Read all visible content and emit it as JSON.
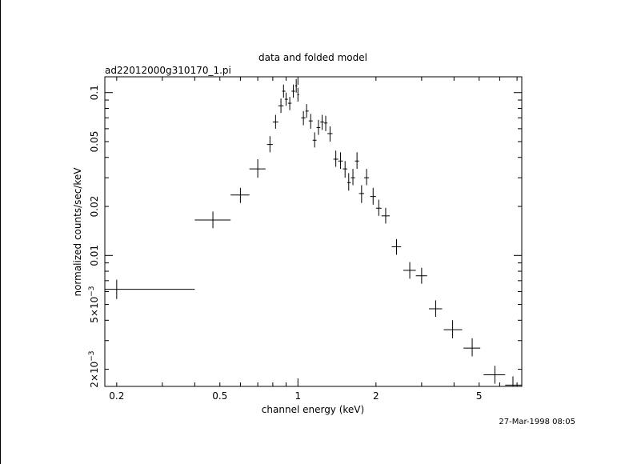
{
  "chart_data": {
    "type": "scatter",
    "title": "data and folded model",
    "subtitle": "ad22012000g310170_1.pi",
    "xlabel": "channel energy (keV)",
    "ylabel": "normalized counts/sec/keV",
    "timestamp": "27-Mar-1998 08:05",
    "x_scale": "log",
    "y_scale": "log",
    "xlim": [
      0.18,
      7.3
    ],
    "ylim": [
      0.00157,
      0.125
    ],
    "x_ticks": [
      {
        "value": 0.2,
        "label": "0.2"
      },
      {
        "value": 0.5,
        "label": "0.5"
      },
      {
        "value": 1,
        "label": "1"
      },
      {
        "value": 2,
        "label": "2"
      },
      {
        "value": 5,
        "label": "5"
      }
    ],
    "y_ticks": [
      {
        "value": 0.1,
        "label": "0.1"
      },
      {
        "value": 0.05,
        "label": "0.05"
      },
      {
        "value": 0.02,
        "label": "0.02"
      },
      {
        "value": 0.01,
        "label": "0.01"
      },
      {
        "value": 0.005,
        "label": "5×10",
        "exp": "−3"
      },
      {
        "value": 0.002,
        "label": "2×10",
        "exp": "−3"
      }
    ],
    "points": [
      {
        "x": 0.2,
        "xlo": 0.18,
        "xhi": 0.4,
        "y": 0.0062,
        "ylo": 0.0054,
        "yhi": 0.0071
      },
      {
        "x": 0.47,
        "xlo": 0.4,
        "xhi": 0.55,
        "y": 0.0165,
        "ylo": 0.0147,
        "yhi": 0.0186
      },
      {
        "x": 0.6,
        "xlo": 0.55,
        "xhi": 0.65,
        "y": 0.0235,
        "ylo": 0.021,
        "yhi": 0.026
      },
      {
        "x": 0.7,
        "xlo": 0.65,
        "xhi": 0.75,
        "y": 0.034,
        "ylo": 0.03,
        "yhi": 0.039
      },
      {
        "x": 0.78,
        "xlo": 0.76,
        "xhi": 0.8,
        "y": 0.048,
        "ylo": 0.043,
        "yhi": 0.054
      },
      {
        "x": 0.82,
        "xlo": 0.8,
        "xhi": 0.84,
        "y": 0.066,
        "ylo": 0.06,
        "yhi": 0.073
      },
      {
        "x": 0.86,
        "xlo": 0.84,
        "xhi": 0.88,
        "y": 0.083,
        "ylo": 0.075,
        "yhi": 0.092
      },
      {
        "x": 0.88,
        "xlo": 0.87,
        "xhi": 0.895,
        "y": 0.102,
        "ylo": 0.093,
        "yhi": 0.112
      },
      {
        "x": 0.9,
        "xlo": 0.89,
        "xhi": 0.915,
        "y": 0.091,
        "ylo": 0.083,
        "yhi": 0.1
      },
      {
        "x": 0.93,
        "xlo": 0.915,
        "xhi": 0.945,
        "y": 0.086,
        "ylo": 0.078,
        "yhi": 0.094
      },
      {
        "x": 0.96,
        "xlo": 0.945,
        "xhi": 0.975,
        "y": 0.102,
        "ylo": 0.093,
        "yhi": 0.112
      },
      {
        "x": 0.985,
        "xlo": 0.975,
        "xhi": 0.995,
        "y": 0.11,
        "ylo": 0.1,
        "yhi": 0.121
      },
      {
        "x": 1.0,
        "xlo": 0.995,
        "xhi": 1.01,
        "y": 0.097,
        "ylo": 0.088,
        "yhi": 0.107
      },
      {
        "x": 1.05,
        "xlo": 1.03,
        "xhi": 1.07,
        "y": 0.07,
        "ylo": 0.063,
        "yhi": 0.077
      },
      {
        "x": 1.08,
        "xlo": 1.07,
        "xhi": 1.1,
        "y": 0.077,
        "ylo": 0.07,
        "yhi": 0.085
      },
      {
        "x": 1.12,
        "xlo": 1.1,
        "xhi": 1.14,
        "y": 0.067,
        "ylo": 0.06,
        "yhi": 0.074
      },
      {
        "x": 1.16,
        "xlo": 1.14,
        "xhi": 1.18,
        "y": 0.051,
        "ylo": 0.046,
        "yhi": 0.057
      },
      {
        "x": 1.2,
        "xlo": 1.18,
        "xhi": 1.22,
        "y": 0.061,
        "ylo": 0.055,
        "yhi": 0.068
      },
      {
        "x": 1.24,
        "xlo": 1.22,
        "xhi": 1.26,
        "y": 0.066,
        "ylo": 0.059,
        "yhi": 0.073
      },
      {
        "x": 1.28,
        "xlo": 1.26,
        "xhi": 1.3,
        "y": 0.065,
        "ylo": 0.058,
        "yhi": 0.072
      },
      {
        "x": 1.33,
        "xlo": 1.3,
        "xhi": 1.36,
        "y": 0.056,
        "ylo": 0.05,
        "yhi": 0.062
      },
      {
        "x": 1.4,
        "xlo": 1.37,
        "xhi": 1.43,
        "y": 0.039,
        "ylo": 0.035,
        "yhi": 0.044
      },
      {
        "x": 1.46,
        "xlo": 1.43,
        "xhi": 1.49,
        "y": 0.038,
        "ylo": 0.034,
        "yhi": 0.043
      },
      {
        "x": 1.52,
        "xlo": 1.49,
        "xhi": 1.55,
        "y": 0.034,
        "ylo": 0.03,
        "yhi": 0.038
      },
      {
        "x": 1.57,
        "xlo": 1.55,
        "xhi": 1.6,
        "y": 0.028,
        "ylo": 0.025,
        "yhi": 0.032
      },
      {
        "x": 1.63,
        "xlo": 1.6,
        "xhi": 1.66,
        "y": 0.03,
        "ylo": 0.027,
        "yhi": 0.034
      },
      {
        "x": 1.69,
        "xlo": 1.66,
        "xhi": 1.72,
        "y": 0.038,
        "ylo": 0.034,
        "yhi": 0.043
      },
      {
        "x": 1.76,
        "xlo": 1.72,
        "xhi": 1.8,
        "y": 0.024,
        "ylo": 0.021,
        "yhi": 0.027
      },
      {
        "x": 1.84,
        "xlo": 1.8,
        "xhi": 1.88,
        "y": 0.03,
        "ylo": 0.027,
        "yhi": 0.034
      },
      {
        "x": 1.95,
        "xlo": 1.9,
        "xhi": 2.0,
        "y": 0.023,
        "ylo": 0.0205,
        "yhi": 0.026
      },
      {
        "x": 2.05,
        "xlo": 2.0,
        "xhi": 2.1,
        "y": 0.0195,
        "ylo": 0.0175,
        "yhi": 0.022
      },
      {
        "x": 2.18,
        "xlo": 2.1,
        "xhi": 2.26,
        "y": 0.0175,
        "ylo": 0.0157,
        "yhi": 0.0196
      },
      {
        "x": 2.4,
        "xlo": 2.3,
        "xhi": 2.5,
        "y": 0.0113,
        "ylo": 0.0101,
        "yhi": 0.0126
      },
      {
        "x": 2.7,
        "xlo": 2.55,
        "xhi": 2.85,
        "y": 0.0081,
        "ylo": 0.0072,
        "yhi": 0.0091
      },
      {
        "x": 3.0,
        "xlo": 2.85,
        "xhi": 3.15,
        "y": 0.0075,
        "ylo": 0.0067,
        "yhi": 0.0084
      },
      {
        "x": 3.4,
        "xlo": 3.2,
        "xhi": 3.6,
        "y": 0.0047,
        "ylo": 0.0042,
        "yhi": 0.0053
      },
      {
        "x": 3.95,
        "xlo": 3.65,
        "xhi": 4.3,
        "y": 0.0035,
        "ylo": 0.0031,
        "yhi": 0.004
      },
      {
        "x": 4.7,
        "xlo": 4.35,
        "xhi": 5.05,
        "y": 0.0027,
        "ylo": 0.0024,
        "yhi": 0.0031
      },
      {
        "x": 5.75,
        "xlo": 5.2,
        "xhi": 6.3,
        "y": 0.00185,
        "ylo": 0.00163,
        "yhi": 0.0021
      },
      {
        "x": 6.75,
        "xlo": 6.3,
        "xhi": 7.3,
        "y": 0.0016,
        "ylo": 0.00141,
        "yhi": 0.00181
      }
    ]
  }
}
